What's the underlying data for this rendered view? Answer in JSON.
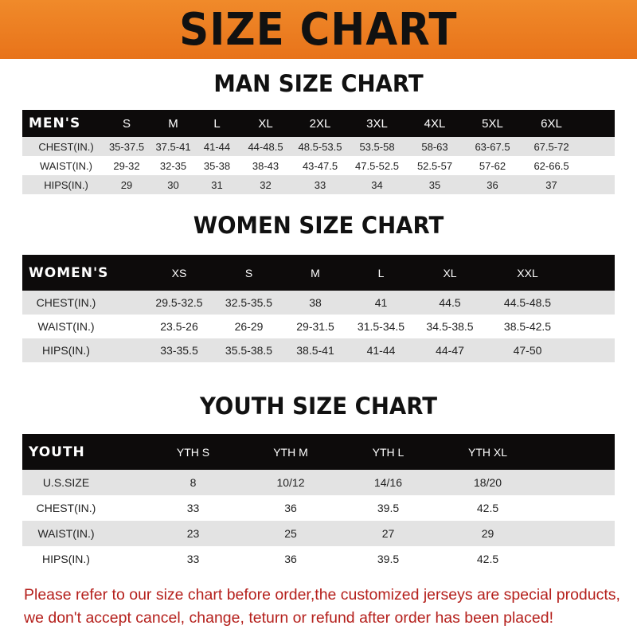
{
  "banner": "SIZE CHART",
  "men": {
    "title": "MAN SIZE CHART",
    "header": [
      "MEN'S",
      "S",
      "M",
      "L",
      "XL",
      "2XL",
      "3XL",
      "4XL",
      "5XL",
      "6XL"
    ],
    "rows": [
      [
        "CHEST(IN.)",
        "35-37.5",
        "37.5-41",
        "41-44",
        "44-48.5",
        "48.5-53.5",
        "53.5-58",
        "58-63",
        "63-67.5",
        "67.5-72"
      ],
      [
        "WAIST(IN.)",
        "29-32",
        "32-35",
        "35-38",
        "38-43",
        "43-47.5",
        "47.5-52.5",
        "52.5-57",
        "57-62",
        "62-66.5"
      ],
      [
        "HIPS(IN.)",
        "29",
        "30",
        "31",
        "32",
        "33",
        "34",
        "35",
        "36",
        "37"
      ]
    ]
  },
  "women": {
    "title": "WOMEN SIZE CHART",
    "header": [
      "WOMEN'S",
      "XS",
      "S",
      "M",
      "L",
      "XL",
      "XXL"
    ],
    "rows": [
      [
        "CHEST(IN.)",
        "29.5-32.5",
        "32.5-35.5",
        "38",
        "41",
        "44.5",
        "44.5-48.5"
      ],
      [
        "WAIST(IN.)",
        "23.5-26",
        "26-29",
        "29-31.5",
        "31.5-34.5",
        "34.5-38.5",
        "38.5-42.5"
      ],
      [
        "HIPS(IN.)",
        "33-35.5",
        "35.5-38.5",
        "38.5-41",
        "41-44",
        "44-47",
        "47-50"
      ]
    ]
  },
  "youth": {
    "title": "YOUTH SIZE CHART",
    "header": [
      "YOUTH",
      "YTH S",
      "YTH M",
      "YTH L",
      "YTH XL"
    ],
    "rows": [
      [
        "U.S.SIZE",
        "8",
        "10/12",
        "14/16",
        "18/20"
      ],
      [
        "CHEST(IN.)",
        "33",
        "36",
        "39.5",
        "42.5"
      ],
      [
        "WAIST(IN.)",
        "23",
        "25",
        "27",
        "29"
      ],
      [
        "HIPS(IN.)",
        "33",
        "36",
        "39.5",
        "42.5"
      ]
    ]
  },
  "note": {
    "line1": "Please refer to our size chart before order,the customized jerseys are special products,",
    "line2": "we don't accept cancel, change, teturn or refund after order has been placed!"
  },
  "colors": {
    "banner": "#e8731a",
    "header_row": "#0d0b0b",
    "note": "#b5201c"
  }
}
